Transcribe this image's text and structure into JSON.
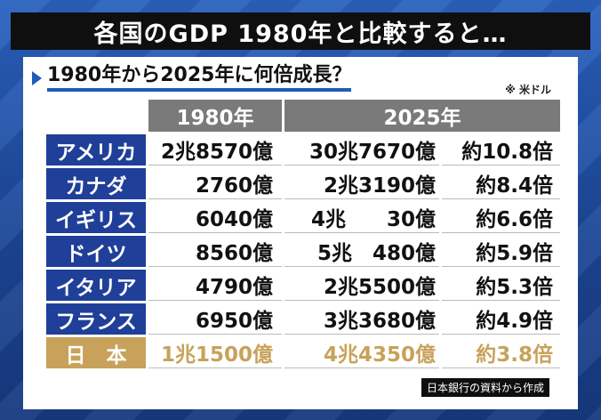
{
  "header": {
    "title": "各国のGDP 1980年と比較すると…"
  },
  "subtitle": "1980年から2025年に何倍成長？",
  "unit_note": "※ 米ドル",
  "table": {
    "columns": [
      "1980年",
      "2025年"
    ],
    "rows": [
      {
        "country": "アメリカ",
        "y1980": "2兆8570億",
        "y2025": "30兆7670億",
        "ratio": "約10.8倍"
      },
      {
        "country": "カナダ",
        "y1980": "2760億",
        "y2025": "2兆3190億",
        "ratio": "約8.4倍"
      },
      {
        "country": "イギリス",
        "y1980": "6040億",
        "y2025": "4兆　　30億",
        "ratio": "約6.6倍"
      },
      {
        "country": "ドイツ",
        "y1980": "8560億",
        "y2025": "5兆　480億",
        "ratio": "約5.9倍"
      },
      {
        "country": "イタリア",
        "y1980": "4790億",
        "y2025": "2兆5500億",
        "ratio": "約5.3倍"
      },
      {
        "country": "フランス",
        "y1980": "6950億",
        "y2025": "3兆3680億",
        "ratio": "約4.9倍"
      },
      {
        "country": "日　本",
        "y1980": "1兆1500億",
        "y2025": "4兆4350億",
        "ratio": "約3.8倍"
      }
    ]
  },
  "source": "日本銀行の資料から作成",
  "colors": {
    "country_bg": "#1f3f99",
    "japan_accent": "#c8a25a",
    "header_gray": "#7a7a7a"
  }
}
